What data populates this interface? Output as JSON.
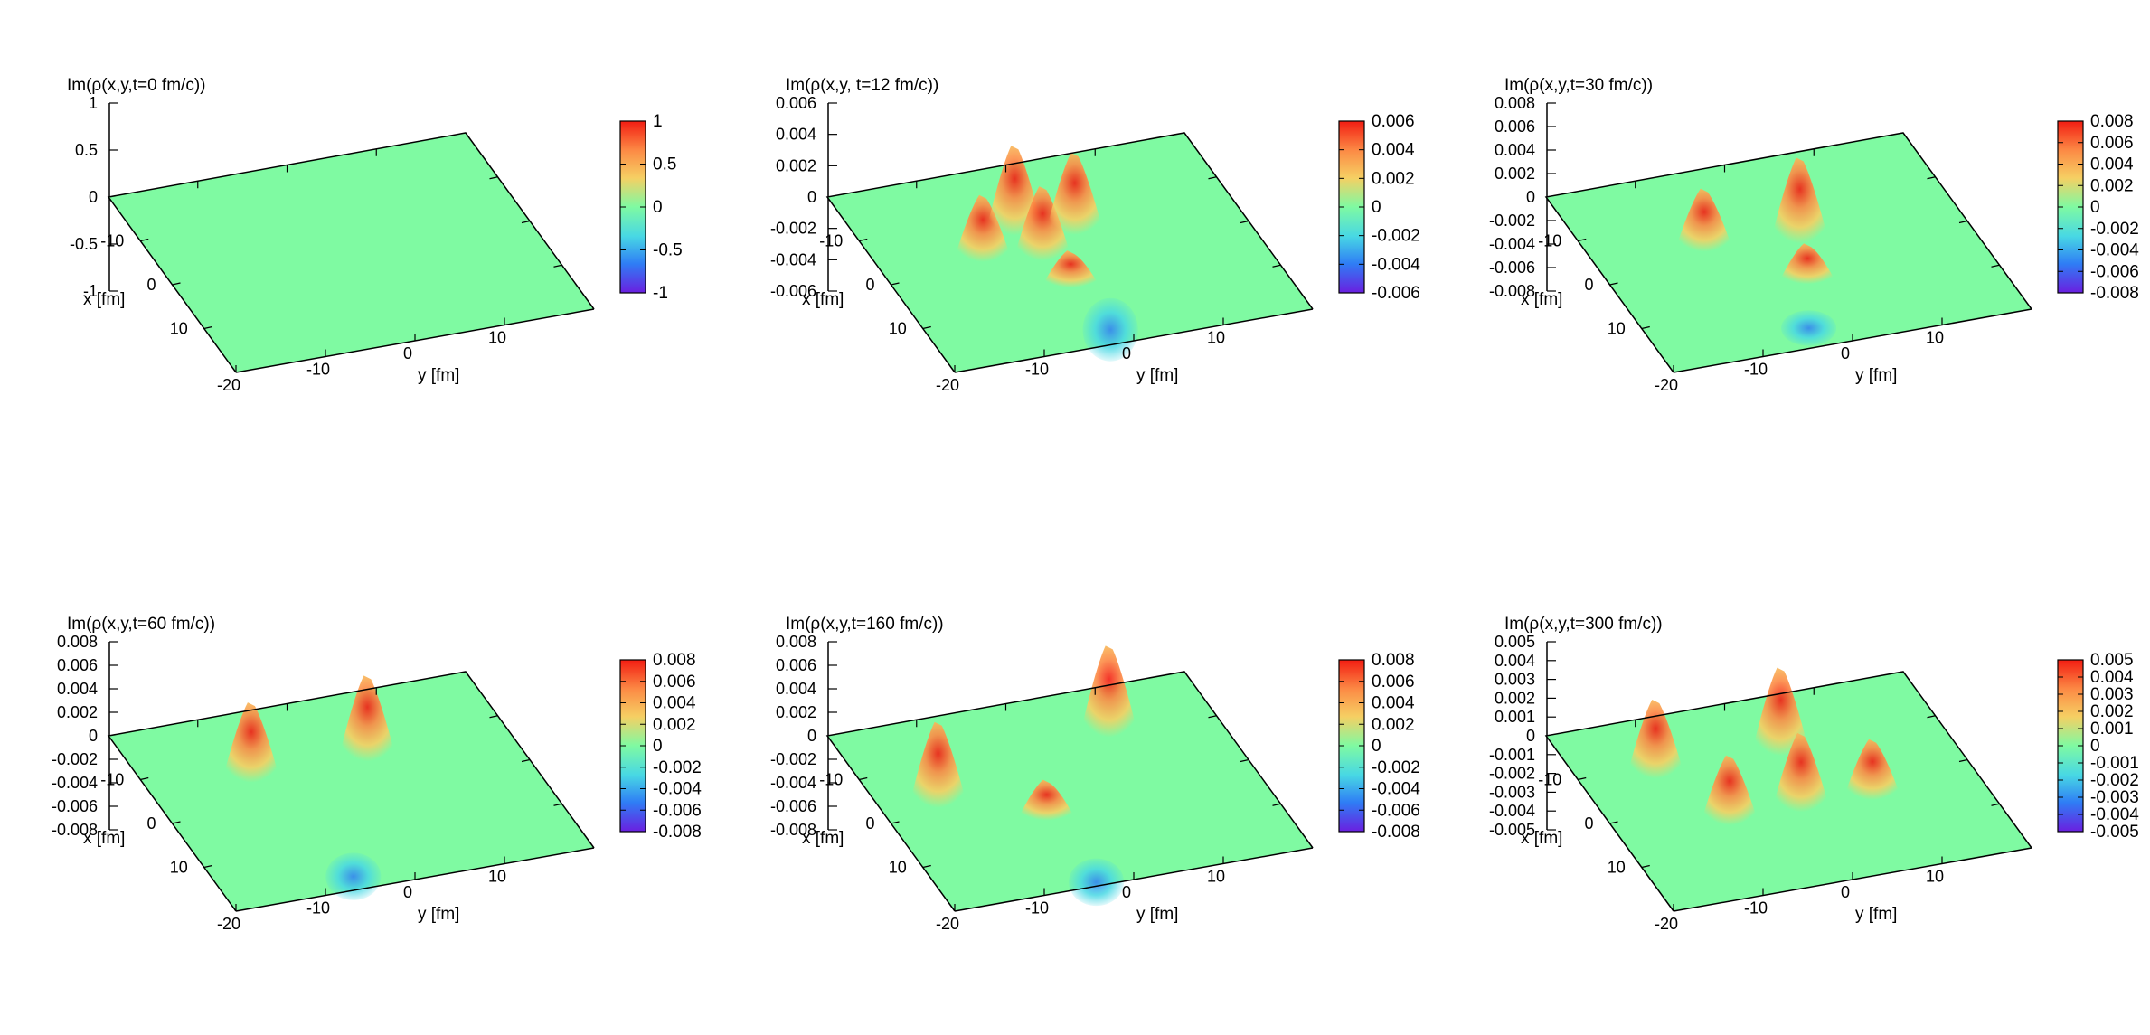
{
  "figure": {
    "panels": [
      {
        "title": "Im(ρ(x,y,t=0 fm/c))",
        "z_ticks": [
          "1",
          "0.5",
          "0",
          "-0.5",
          "-1"
        ],
        "x_ticks": [
          "-10",
          "0",
          "10"
        ],
        "y_ticks": [
          "-20",
          "-10",
          "0",
          "10"
        ],
        "x_label": "x [fm]",
        "y_label": "y [fm]",
        "cb_ticks": [
          "1",
          "0.5",
          "0",
          "-0.5",
          "-1"
        ]
      },
      {
        "title": "Im(ρ(x,y, t=12 fm/c))",
        "z_ticks": [
          "0.006",
          "0.004",
          "0.002",
          "0",
          "-0.002",
          "-0.004",
          "-0.006"
        ],
        "x_ticks": [
          "-10",
          "0",
          "10"
        ],
        "y_ticks": [
          "-20",
          "-10",
          "0",
          "10"
        ],
        "x_label": "x [fm]",
        "y_label": "y [fm]",
        "cb_ticks": [
          "0.006",
          "0.004",
          "0.002",
          "0",
          "-0.002",
          "-0.004",
          "-0.006"
        ]
      },
      {
        "title": "Im(ρ(x,y,t=30 fm/c))",
        "z_ticks": [
          "0.008",
          "0.006",
          "0.004",
          "0.002",
          "0",
          "-0.002",
          "-0.004",
          "-0.006",
          "-0.008"
        ],
        "x_ticks": [
          "-10",
          "0",
          "10"
        ],
        "y_ticks": [
          "-20",
          "-10",
          "0",
          "10"
        ],
        "x_label": "x [fm]",
        "y_label": "y [fm]",
        "cb_ticks": [
          "0.008",
          "0.006",
          "0.004",
          "0.002",
          "0",
          "-0.002",
          "-0.004",
          "-0.006",
          "-0.008"
        ]
      },
      {
        "title": "Im(ρ(x,y,t=60 fm/c))",
        "z_ticks": [
          "0.008",
          "0.006",
          "0.004",
          "0.002",
          "0",
          "-0.002",
          "-0.004",
          "-0.006",
          "-0.008"
        ],
        "x_ticks": [
          "-10",
          "0",
          "10"
        ],
        "y_ticks": [
          "-20",
          "-10",
          "0",
          "10"
        ],
        "x_label": "x [fm]",
        "y_label": "y [fm]",
        "cb_ticks": [
          "0.008",
          "0.006",
          "0.004",
          "0.002",
          "0",
          "-0.002",
          "-0.004",
          "-0.006",
          "-0.008"
        ]
      },
      {
        "title": "Im(ρ(x,y,t=160 fm/c))",
        "z_ticks": [
          "0.008",
          "0.006",
          "0.004",
          "0.002",
          "0",
          "-0.002",
          "-0.004",
          "-0.006",
          "-0.008"
        ],
        "x_ticks": [
          "-10",
          "0",
          "10"
        ],
        "y_ticks": [
          "-20",
          "-10",
          "0",
          "10"
        ],
        "x_label": "x [fm]",
        "y_label": "y [fm]",
        "cb_ticks": [
          "0.008",
          "0.006",
          "0.004",
          "0.002",
          "0",
          "-0.002",
          "-0.004",
          "-0.006",
          "-0.008"
        ]
      },
      {
        "title": "Im(ρ(x,y,t=300 fm/c))",
        "z_ticks": [
          "0.005",
          "0.004",
          "0.003",
          "0.002",
          "0.001",
          "0",
          "-0.001",
          "-0.002",
          "-0.003",
          "-0.004",
          "-0.005"
        ],
        "x_ticks": [
          "-10",
          "0",
          "10"
        ],
        "y_ticks": [
          "-20",
          "-10",
          "0",
          "10"
        ],
        "x_label": "x [fm]",
        "y_label": "y [fm]",
        "cb_ticks": [
          "0.005",
          "0.004",
          "0.003",
          "0.002",
          "0.001",
          "0",
          "-0.001",
          "-0.002",
          "-0.003",
          "-0.004",
          "-0.005"
        ]
      }
    ]
  },
  "chart_data": [
    {
      "type": "surface",
      "x_range": [
        -20,
        20
      ],
      "y_range": [
        -20,
        20
      ],
      "z_range": [
        -1,
        1
      ],
      "colormap": "rainbow",
      "colormap_colors": [
        "#6a1fe0",
        "#2f7df5",
        "#48d8e4",
        "#7ffaa2",
        "#f6cf63",
        "#fc8a45",
        "#f21d12"
      ],
      "surface_description_value": 0,
      "peaks": []
    },
    {
      "type": "surface",
      "x_range": [
        -20,
        20
      ],
      "y_range": [
        -20,
        20
      ],
      "z_range": [
        -0.006,
        0.006
      ],
      "colormap": "rainbow",
      "colormap_colors": [
        "#6a1fe0",
        "#2f7df5",
        "#48d8e4",
        "#7ffaa2",
        "#f6cf63",
        "#fc8a45",
        "#f21d12"
      ],
      "peaks": [
        {
          "x": -2,
          "y": -9,
          "z": 0.004
        },
        {
          "x": -6,
          "y": -4,
          "z": 0.0055
        },
        {
          "x": 0,
          "y": -3,
          "z": 0.0045
        },
        {
          "x": -4,
          "y": 2,
          "z": 0.005
        },
        {
          "x": 6,
          "y": -2,
          "z": 0.002
        },
        {
          "x": 10,
          "y": 1,
          "z": -0.004
        }
      ]
    },
    {
      "type": "surface",
      "x_range": [
        -20,
        20
      ],
      "y_range": [
        -20,
        20
      ],
      "z_range": [
        -0.008,
        0.008
      ],
      "colormap": "rainbow",
      "colormap_colors": [
        "#6a1fe0",
        "#2f7df5",
        "#48d8e4",
        "#7ffaa2",
        "#f6cf63",
        "#fc8a45",
        "#f21d12"
      ],
      "peaks": [
        {
          "x": -4,
          "y": -8,
          "z": 0.005
        },
        {
          "x": -2,
          "y": 2,
          "z": 0.007
        },
        {
          "x": 6,
          "y": 0,
          "z": 0.003
        },
        {
          "x": 12,
          "y": -2,
          "z": -0.003
        }
      ]
    },
    {
      "type": "surface",
      "x_range": [
        -20,
        20
      ],
      "y_range": [
        -20,
        20
      ],
      "z_range": [
        -0.008,
        0.008
      ],
      "colormap": "rainbow",
      "colormap_colors": [
        "#6a1fe0",
        "#2f7df5",
        "#48d8e4",
        "#7ffaa2",
        "#f6cf63",
        "#fc8a45",
        "#f21d12"
      ],
      "peaks": [
        {
          "x": -6,
          "y": -9,
          "z": 0.0065
        },
        {
          "x": -6,
          "y": 4,
          "z": 0.007
        },
        {
          "x": 12,
          "y": -4,
          "z": -0.004
        }
      ]
    },
    {
      "type": "surface",
      "x_range": [
        -20,
        20
      ],
      "y_range": [
        -20,
        20
      ],
      "z_range": [
        -0.008,
        0.008
      ],
      "colormap": "rainbow",
      "colormap_colors": [
        "#6a1fe0",
        "#2f7df5",
        "#48d8e4",
        "#7ffaa2",
        "#f6cf63",
        "#fc8a45",
        "#f21d12"
      ],
      "peaks": [
        {
          "x": -2,
          "y": -14,
          "z": 0.007
        },
        {
          "x": -10,
          "y": 8,
          "z": 0.0075
        },
        {
          "x": 4,
          "y": -4,
          "z": 0.003
        },
        {
          "x": 14,
          "y": -2,
          "z": -0.004
        }
      ]
    },
    {
      "type": "surface",
      "x_range": [
        -20,
        20
      ],
      "y_range": [
        -20,
        20
      ],
      "z_range": [
        -0.005,
        0.005
      ],
      "colormap": "rainbow",
      "colormap_colors": [
        "#6a1fe0",
        "#2f7df5",
        "#48d8e4",
        "#7ffaa2",
        "#f6cf63",
        "#fc8a45",
        "#f21d12"
      ],
      "peaks": [
        {
          "x": -8,
          "y": -12,
          "z": 0.004
        },
        {
          "x": -8,
          "y": 2,
          "z": 0.0045
        },
        {
          "x": 4,
          "y": -8,
          "z": 0.0035
        },
        {
          "x": 4,
          "y": 0,
          "z": 0.004
        },
        {
          "x": 4,
          "y": 8,
          "z": 0.003
        }
      ]
    }
  ]
}
